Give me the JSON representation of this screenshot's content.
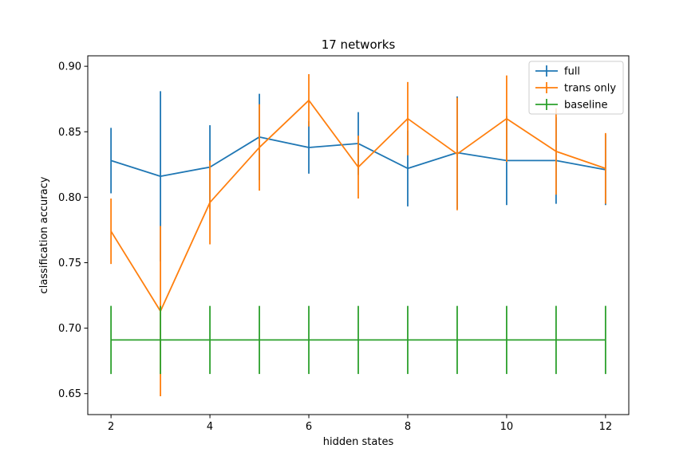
{
  "chart_data": {
    "type": "line",
    "title": "17 networks",
    "xlabel": "hidden states",
    "ylabel": "classification accuracy",
    "xlim": [
      1.53,
      12.47
    ],
    "ylim": [
      0.634,
      0.908
    ],
    "x_ticks": [
      2,
      4,
      6,
      8,
      10,
      12
    ],
    "y_ticks": [
      0.65,
      0.7,
      0.75,
      0.8,
      0.85,
      0.9
    ],
    "x_tick_labels": [
      "2",
      "4",
      "6",
      "8",
      "10",
      "12"
    ],
    "y_tick_labels": [
      "0.65",
      "0.70",
      "0.75",
      "0.80",
      "0.85",
      "0.90"
    ],
    "grid": false,
    "legend_position": "top-right",
    "error_bars": true,
    "x": [
      2,
      3,
      4,
      5,
      6,
      7,
      8,
      9,
      10,
      11,
      12
    ],
    "series": [
      {
        "name": "full",
        "color": "#1f77b4",
        "values": [
          0.828,
          0.816,
          0.823,
          0.846,
          0.838,
          0.841,
          0.822,
          0.834,
          0.828,
          0.828,
          0.821
        ],
        "errors": [
          0.025,
          0.065,
          0.032,
          0.033,
          0.02,
          0.024,
          0.029,
          0.043,
          0.034,
          0.033,
          0.027
        ]
      },
      {
        "name": "trans only",
        "color": "#ff7f0e",
        "values": [
          0.774,
          0.713,
          0.796,
          0.838,
          0.874,
          0.823,
          0.86,
          0.833,
          0.86,
          0.835,
          0.822
        ],
        "errors": [
          0.025,
          0.065,
          0.032,
          0.033,
          0.02,
          0.024,
          0.028,
          0.043,
          0.033,
          0.033,
          0.027
        ]
      },
      {
        "name": "baseline",
        "color": "#2ca02c",
        "values": [
          0.691,
          0.691,
          0.691,
          0.691,
          0.691,
          0.691,
          0.691,
          0.691,
          0.691,
          0.691,
          0.691
        ],
        "errors": [
          0.026,
          0.026,
          0.026,
          0.026,
          0.026,
          0.026,
          0.026,
          0.026,
          0.026,
          0.026,
          0.026
        ]
      }
    ]
  }
}
